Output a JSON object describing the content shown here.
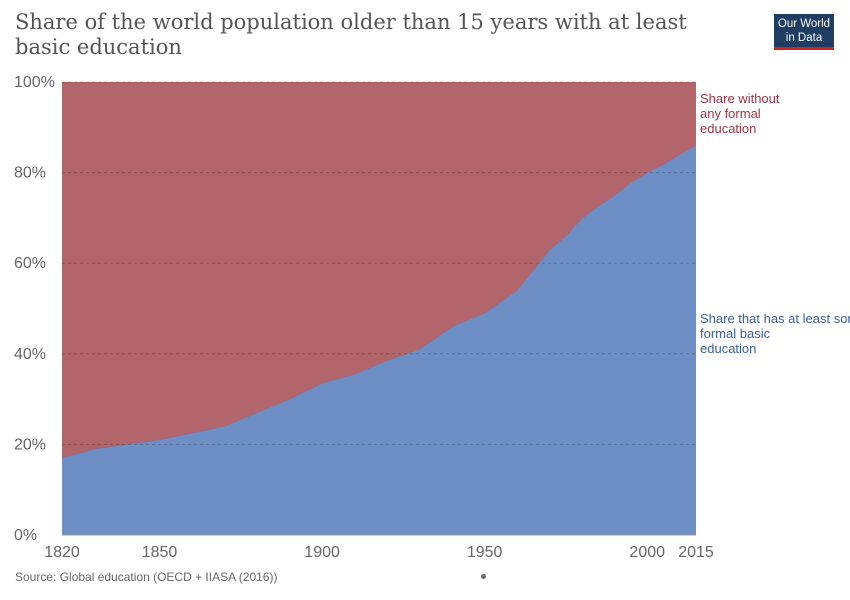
{
  "title": "Share of the world population older than 15 years with at least basic education",
  "logo": {
    "line1": "Our World",
    "line2": "in Data"
  },
  "source": "Source: Global education (OECD + IIASA (2016))",
  "colors": {
    "basic": "#6d8fc5",
    "none": "#b2666b",
    "basic_label": "#3c5e9b",
    "none_label": "#9a3645"
  },
  "chart_data": {
    "type": "area",
    "stacked": true,
    "title": "Share of the world population older than 15 years with at least basic education",
    "xlim": [
      1820,
      2015
    ],
    "ylim": [
      0,
      100
    ],
    "x_ticks": [
      1820,
      1850,
      1900,
      1950,
      2000,
      2015
    ],
    "y_ticks": [
      0,
      20,
      40,
      60,
      80,
      100
    ],
    "y_tick_suffix": "%",
    "grid": true,
    "x": [
      1820,
      1830,
      1840,
      1850,
      1860,
      1870,
      1880,
      1890,
      1900,
      1910,
      1920,
      1930,
      1940,
      1950,
      1960,
      1970,
      1975,
      1980,
      1985,
      1990,
      1995,
      2000,
      2005,
      2010,
      2015
    ],
    "series": [
      {
        "name": "Share that has at least some formal basic education",
        "label_lines": [
          "Share that has at least some",
          "formal basic",
          "education"
        ],
        "values": [
          17,
          19,
          20,
          21,
          22.5,
          24,
          27,
          30,
          33.5,
          35.5,
          38.5,
          41,
          46,
          49,
          54,
          63,
          66,
          70,
          72.6,
          75,
          77.8,
          80,
          81.8,
          84,
          86
        ]
      },
      {
        "name": "Share without any formal education",
        "label_lines": [
          "Share without",
          "any formal",
          "education"
        ],
        "values": [
          83,
          81,
          80,
          79,
          77.5,
          76,
          73,
          70,
          66.5,
          64.5,
          61.5,
          59,
          54,
          51,
          46,
          37,
          34,
          30,
          27.4,
          25,
          22.2,
          20,
          18.2,
          16,
          14
        ]
      }
    ]
  }
}
